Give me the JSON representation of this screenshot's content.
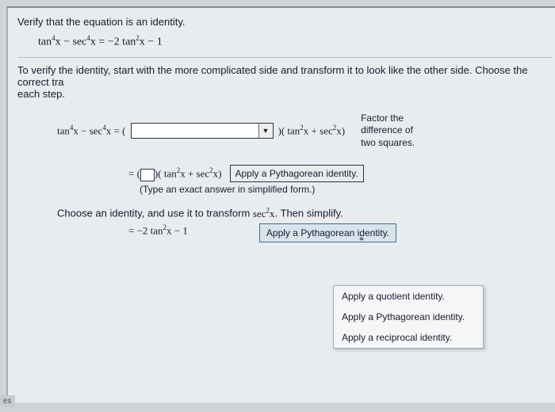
{
  "header": {
    "instruction": "Verify that the equation is an identity.",
    "main_equation": "tan⁴x − sec⁴x = −2 tan²x − 1"
  },
  "verify_text": "To verify the identity, start with the more complicated side and transform it to look like the other side. Choose the correct tra",
  "each_step": "each step.",
  "step1": {
    "lhs": "tan⁴x − sec⁴x = (",
    "after_dropdown": ")( tan²x + sec²x)",
    "side_note_l1": "Factor the",
    "side_note_l2": "difference of",
    "side_note_l3": "two squares."
  },
  "step2": {
    "prefix": "= (",
    "after_box": ")( tan²x + sec²x)",
    "hint": "Apply a Pythagorean identity.",
    "type_note": "(Type an exact answer in simplified form.)"
  },
  "step3": {
    "label_a": "Choose an identity, and use it to transform ",
    "label_sec": "sec²x",
    "label_b": ". Then simplify.",
    "result": "= −2 tan²x − 1",
    "selected_hint": "Apply a Pythagorean identity."
  },
  "menu": {
    "items": [
      "Apply a quotient identity.",
      "Apply a Pythagorean identity.",
      "Apply a reciprocal identity."
    ]
  },
  "corner": "es"
}
